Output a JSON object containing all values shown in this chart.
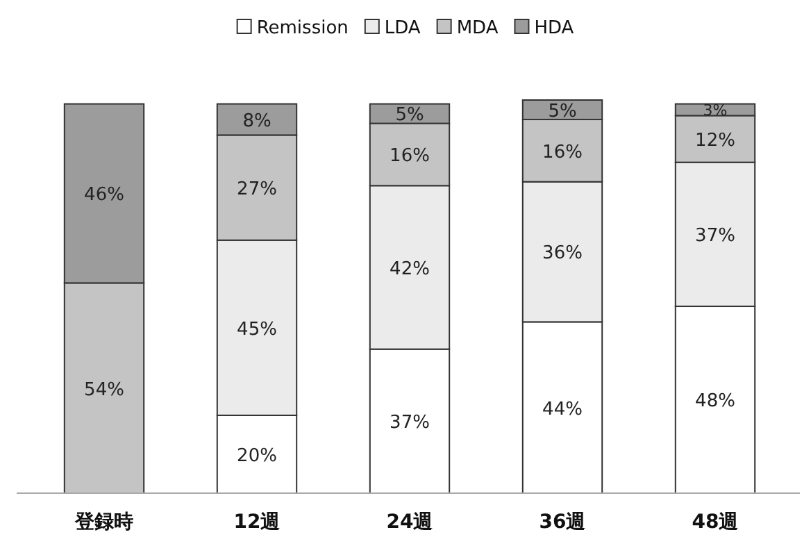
{
  "chart_data": {
    "type": "bar",
    "stacked": true,
    "legend": "top",
    "grid": false,
    "categories": [
      "登録時",
      "12週",
      "24週",
      "36週",
      "48週"
    ],
    "series": [
      {
        "name": "Remission",
        "color": "#ffffff",
        "values": [
          null,
          20,
          37,
          44,
          48
        ],
        "value_labels": [
          null,
          "20%",
          "37%",
          "44%",
          "48%"
        ]
      },
      {
        "name": "LDA",
        "color": "#ebebeb",
        "values": [
          null,
          45,
          42,
          36,
          37
        ],
        "value_labels": [
          null,
          "45%",
          "42%",
          "36%",
          "37%"
        ]
      },
      {
        "name": "MDA",
        "color": "#c4c4c4",
        "values": [
          54,
          27,
          16,
          16,
          12
        ],
        "value_labels": [
          "54%",
          "27%",
          "16%",
          "16%",
          "12%"
        ]
      },
      {
        "name": "HDA",
        "color": "#9c9c9c",
        "values": [
          46,
          8,
          5,
          5,
          3
        ],
        "value_labels": [
          "46%",
          "8%",
          "5%",
          "5%",
          "3%"
        ]
      }
    ]
  }
}
